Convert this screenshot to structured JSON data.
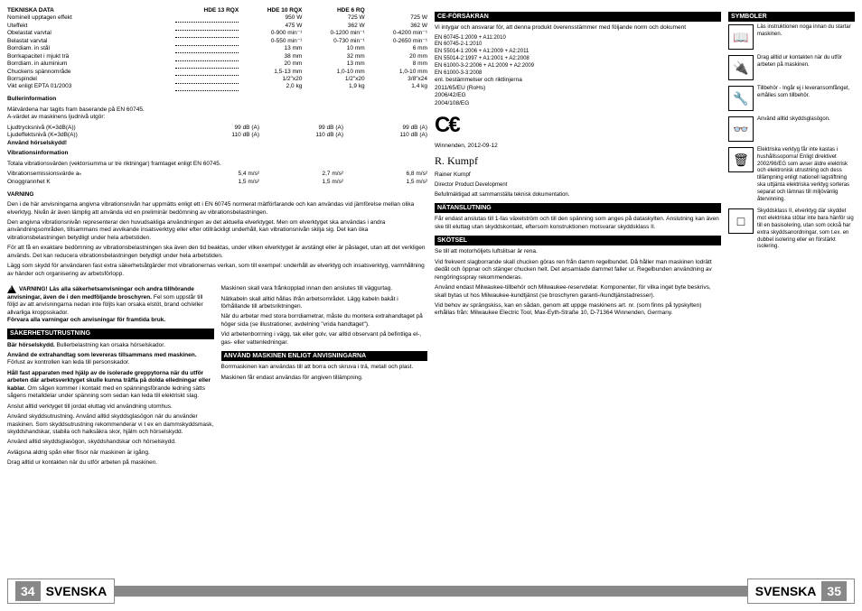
{
  "styles": {
    "header_bg": "#000000",
    "header_fg": "#ffffff",
    "gray": "#888888",
    "font_body": 6.5,
    "font_header": 7,
    "font_footer": 14
  },
  "footer": {
    "left_num": "34",
    "right_num": "35",
    "lang": "SVENSKA"
  },
  "specs": {
    "header": "TEKNISKA DATA",
    "cols": [
      "HDE 13 RQX",
      "HDE 10 RQX",
      "HDE 6 RQ"
    ],
    "rows": [
      {
        "l": "Nominell upptagen effekt",
        "v": [
          "950 W",
          "725 W",
          "725 W"
        ]
      },
      {
        "l": "Uteffekt",
        "v": [
          "475 W",
          "362 W",
          "362 W"
        ]
      },
      {
        "l": "Obelastat varvtal",
        "v": [
          "0-900 min⁻¹",
          "0-1200 min⁻¹",
          "0-4200 min⁻¹"
        ]
      },
      {
        "l": "Belastat varvtal",
        "v": [
          "0-550 min⁻¹",
          "0-730 min⁻¹",
          "0-2650 min⁻¹"
        ]
      },
      {
        "l": "Borrdiam. in stål",
        "v": [
          "13 mm",
          "10 mm",
          "6 mm"
        ]
      },
      {
        "l": "Borrkapacitet i mjukt trä",
        "v": [
          "38 mm",
          "32 mm",
          "20 mm"
        ]
      },
      {
        "l": "Borrdiam. in aluminium",
        "v": [
          "20 mm",
          "13 mm",
          "8 mm"
        ]
      },
      {
        "l": "Chuckens spännområde",
        "v": [
          "1,5-13 mm",
          "1,0-10 mm",
          "1,0-10 mm"
        ]
      },
      {
        "l": "Borrspindel",
        "v": [
          "1/2\"x20",
          "1/2\"x20",
          "3/8\"x24"
        ]
      },
      {
        "l": "Vikt enligt EPTA 01/2003",
        "v": [
          "2,0 kg",
          "1,9 kg",
          "1,4 kg"
        ]
      }
    ]
  },
  "noise": {
    "title": "Bullerinformation",
    "intro": "Mätvärdena har tagits fram baserande på EN 60745.\nA-värdet av maskinens ljudnivå utgör:",
    "rows": [
      {
        "l": "Ljudtrycksnivå (K=3dB(A))",
        "v": [
          "99 dB (A)",
          "99 dB (A)",
          "99 dB (A)"
        ]
      },
      {
        "l": "Ljudeffektsnivå (K=3dB(A))",
        "v": [
          "110 dB (A)",
          "110 dB (A)",
          "110 dB (A)"
        ]
      }
    ],
    "warn": "Använd hörselskydd!"
  },
  "vib": {
    "title": "Vibrationsinformation",
    "intro": "Totala vibrationsvärden (vektorsumma ur tre riktningar) framtaget enligt EN 60745.",
    "rows": [
      {
        "l": "Vibrationsemissionsvärde aₕ",
        "v": [
          "5,4 m/s²",
          "2,7 m/s²",
          "6,8 m/s²"
        ]
      },
      {
        "l": "Onoggrannhet K",
        "v": [
          "1,5 m/s²",
          "1,5 m/s²",
          "1,5 m/s²"
        ]
      }
    ]
  },
  "warning": {
    "title": "VARNING",
    "paras": [
      "Den i de här anvisningarna angivna vibrationsnivån har uppmätts enligt ett i EN 60745 normerat mätförfarande och kan användas vid jämförelse mellan olika elverktyg. Nivån är även lämplig att använda vid en preliminär bedömning av vibrationsbelastningen.",
      "Den angivna vibrationsnivån representerar den huvudsakliga användningen av det aktuella elverktyget. Men om elverktyget ska användas i andra användningsområden, tillsammans med avvikande insatsverktyg eller efter otillräckligt underhåll, kan vibrationsnivån skilja sig. Det kan öka vibrationsbelastningen betydligt under hela arbetstiden.",
      "För att få en exaktare bedömning av vibrationsbelastningen ska även den tid beaktas, under vilken elverktyget är avstängt eller är påslaget, utan att det verkligen används. Det kan reducera vibrationsbelastningen betydligt under hela arbetstiden.",
      "Lägg som skydd för användaren fast extra säkerhetsåtgärder mot vibrationernas verkan, som till exempel: underhåll av elverktyg och insatsverktyg, varmhållning av händer och organisering av arbetsförlopp."
    ]
  },
  "safety_box": {
    "text": "VARNING! Läs alla säkerhetsanvisningar och andra tillhörande anvisningar, även de i den medföljande broschyren.",
    "text2": "Fel som uppstår till följd av att anvisningarna nedan inte följts kan orsaka elstöt, brand och/eller allvarliga kroppsskador.",
    "text3": "Förvara alla varningar och anvisningar för framtida bruk."
  },
  "safety": {
    "header": "SÄKERHETSUTRUSTNING",
    "paras": [
      {
        "b": "Bär hörselskydd.",
        "t": " Bullerbelastning kan orsaka hörselskador."
      },
      {
        "b": "Använd de extrahandtag som levereras tillsammans med maskinen.",
        "t": " Förlust av kontrollen kan leda till personskador."
      },
      {
        "b": "Håll fast apparaten med hjälp av de isolerade greppytorna när du utför arbeten där arbetsverktyget skulle kunna träffa på dolda elledningar eller kablar.",
        "t": " Om sågen kommer i kontakt med en spänningsförande ledning sätts sågens metalldelar under spänning som sedan kan leda till elektriskt slag."
      },
      {
        "b": "",
        "t": "Anslut alltid verktyget till jordat eluttag vid användning utomhus."
      },
      {
        "b": "",
        "t": "Använd skyddsutrustning. Använd alltid skyddsglasögon när du använder maskinen. Som skyddsutrustning rekommenderar vi t ex en dammskyddsmask, skyddshandskar, stabila och halksäkra skor, hjälm och hörselskydd."
      },
      {
        "b": "",
        "t": "Använd alltid skyddsglasögon, skyddshandskar och hörselskydd."
      },
      {
        "b": "",
        "t": "Avlägsna aldrig spån eller flisor när maskinen är igång."
      },
      {
        "b": "",
        "t": "Drag alltid ur kontakten när du utför arbeten på maskinen."
      }
    ]
  },
  "col2": {
    "paras": [
      "Maskinen skall vara frånkopplad innan den anslutes till väggurtag.",
      "Nätkabeln skall alltid hållas ifrån arbetsområdet. Lägg kabeln bakåt i förhållande till arbetsriktningen.",
      "När du arbetar med stora borrdiametrar, måste du montera extrahandtaget på höger sida (se illustrationer, avdelning \"vrida handtaget\").",
      "Vid arbetenborrning i vägg, tak eller golv, var alltid observant på befintliga el-, gas- eller vattenledningar."
    ],
    "header": "ANVÄND MASKINEN ENLIGT ANVISNINGARNA",
    "use": [
      "Borrmaskinen kan användas till att borra och skruva i trä, metall och plast.",
      "Maskinen får endast användas för angiven tillämpning."
    ]
  },
  "ce": {
    "header": "CE-FÖRSÄKRAN",
    "intro": "Vi intygar och ansvarar för, att denna produkt överensstämmer med följande norm och dokument",
    "stds": [
      "EN 60745-1:2009 + A11:2010",
      "EN 60745-2-1:2010",
      "EN 55014-1:2006 + A1:2009 + A2:2011",
      "EN 55014-2:1997 + A1:2001 + A2:2008",
      "EN 61000-3-2:2006 + A1:2009 + A2:2009",
      "EN 61000-3-3:2008"
    ],
    "tail": "enl. bestämmelser och riktlinjerna\n2011/65/EU (RoHs)\n2006/42/EG\n2004/108/EG",
    "place": "Winnenden, 2012-09-12",
    "name": "Rainer Kumpf",
    "role": "Director Product Development",
    "auth": "Befullmäktigad att sammanställa teknisk dokumentation."
  },
  "mains": {
    "header": "NÄTANSLUTNING",
    "text": "Får endast anslutas till 1-fas växelström och till den spänning som anges på dataskylten. Anslutning kan även ske till eluttag utan skyddskontakt, eftersom konstruktionen motsvarar skyddsklass II."
  },
  "care": {
    "header": "SKÖTSEL",
    "paras": [
      "Se till att motorhöljets luftslitsar är rena.",
      "Vid frekvent slagborrande skall chucken göras ren från damm regelbundet. Då håller man maskinen lodrätt dedåt och öppnar och stänger chucken helt. Det ansamlade dammet faller ur. Regelbunden användning av rengöringsspray rekommenderas.",
      "Använd endast Milwaukee-tillbehör och Milwaukee-reservdelar. Komponenter, för vilka inget byte beskrivs, skall bytas ut hos Milwaukee-kundtjänst (se broschyren garanti-/kundtjänstadresser).",
      "Vid behov av sprängskiss, kan en sådan, genom att uppge maskinens art. nr. (som finns på typskylten) erhållas från: Milwaukee Electric Tool, Max-Eyth-Straße 10, D-71364 Winnenden, Germany."
    ]
  },
  "symbols": {
    "header": "SYMBOLER",
    "items": [
      {
        "i": "📖",
        "t": "Läs instruktionen noga innan du startar maskinen."
      },
      {
        "i": "🔌",
        "t": "Drag alltid ur kontakten när du utför arbeten på maskinen."
      },
      {
        "i": "🔧",
        "t": "Tillbehör - Ingår ej i leveransomfånget, erhålles som tillbehör."
      },
      {
        "i": "👓",
        "t": "Använd alltid skyddsglasögon."
      },
      {
        "i": "🗑",
        "t": "Elektriska verktyg får inte kastas i hushållssoporna! Enligt direktivet 2002/96/EG som avser äldre elektrisk och elektronisk utrustning och dess tillämpning enligt nationell lagstiftning ska uttjänta elektriska verktyg sorteras separat och lämnas till miljövänlig återvinning."
      },
      {
        "i": "□",
        "t": "Skyddsklass II, elverktyg där skyddet mot elektriska stötar inte bara hänför sig till en basisolering, utan som också har extra skyddsanordningar, som t.ex. en dubbel isolering eller en förstärkt isolering."
      }
    ]
  }
}
